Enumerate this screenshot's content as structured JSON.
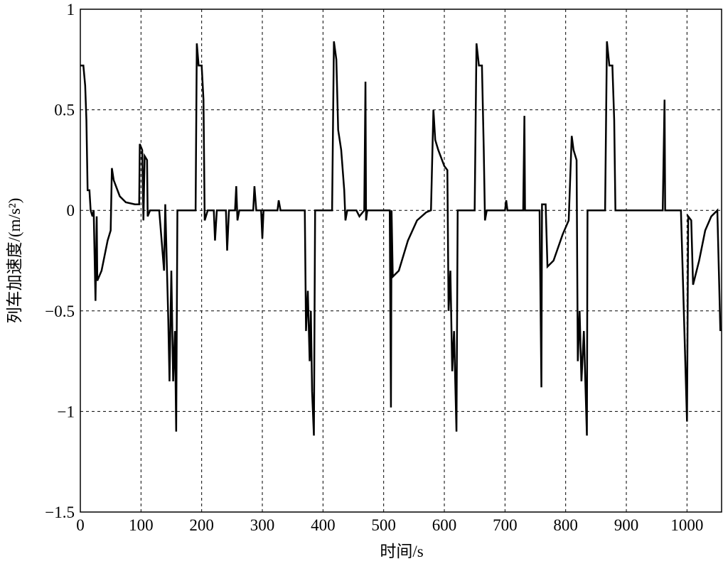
{
  "chart_data": {
    "type": "line",
    "xlabel": "时间/s",
    "ylabel": "列车加速度/(m/s²)",
    "xlim": [
      0,
      1057
    ],
    "ylim": [
      -1.5,
      1
    ],
    "xticks": [
      0,
      100,
      200,
      300,
      400,
      500,
      600,
      700,
      800,
      900,
      1000
    ],
    "yticks": [
      {
        "value": -1.5,
        "label": "−1.5"
      },
      {
        "value": -1,
        "label": "−1"
      },
      {
        "value": -0.5,
        "label": "−0.5"
      },
      0,
      0.5,
      1
    ],
    "grid": true,
    "series": [
      {
        "color": "#000000",
        "x": [
          0,
          5,
          8,
          10,
          12,
          15,
          17,
          20,
          22,
          25,
          27,
          28,
          35,
          45,
          50,
          52,
          55,
          65,
          75,
          90,
          97,
          98,
          102,
          104,
          106,
          110,
          111,
          115,
          130,
          138,
          140,
          145,
          147,
          150,
          153,
          156,
          158,
          160,
          190,
          192,
          195,
          200,
          203,
          205,
          210,
          220,
          222,
          225,
          240,
          242,
          245,
          255,
          257,
          259,
          262,
          285,
          287,
          290,
          298,
          300,
          302,
          325,
          327,
          330,
          370,
          372,
          375,
          378,
          380,
          382,
          385,
          387,
          415,
          418,
          422,
          425,
          430,
          435,
          437,
          440,
          455,
          460,
          468,
          470,
          471,
          473,
          510,
          512,
          513,
          515,
          525,
          540,
          555,
          570,
          578,
          582,
          585,
          590,
          600,
          605,
          607,
          610,
          613,
          616,
          620,
          622,
          650,
          653,
          657,
          662,
          665,
          667,
          670,
          700,
          702,
          704,
          730,
          732,
          733,
          757,
          760,
          761,
          767,
          770,
          780,
          795,
          805,
          810,
          813,
          818,
          820,
          823,
          826,
          830,
          835,
          836,
          865,
          868,
          872,
          877,
          880,
          882,
          960,
          963,
          964,
          990,
          1000,
          1002,
          1007,
          1010,
          1020,
          1030,
          1040,
          1050,
          1055
        ],
        "values": [
          0.72,
          0.72,
          0.62,
          0.45,
          0.1,
          0.1,
          0,
          -0.03,
          0,
          -0.45,
          -0.03,
          -0.35,
          -0.3,
          -0.15,
          -0.1,
          0.21,
          0.15,
          0.07,
          0.04,
          0.03,
          0.03,
          0.33,
          0.3,
          -0.05,
          0.27,
          0.25,
          -0.03,
          0,
          0,
          -0.3,
          0.03,
          -0.55,
          -0.85,
          -0.3,
          -0.85,
          -0.6,
          -1.1,
          0,
          0,
          0.83,
          0.72,
          0.72,
          0.55,
          -0.05,
          0,
          0,
          -0.15,
          0,
          0,
          -0.2,
          0,
          0,
          0.12,
          -0.05,
          0,
          0,
          0.12,
          0,
          0,
          -0.14,
          0,
          0,
          0.05,
          0,
          0,
          -0.6,
          -0.4,
          -0.75,
          -0.5,
          -0.9,
          -1.12,
          0,
          0,
          0.84,
          0.75,
          0.4,
          0.3,
          0.1,
          -0.05,
          0,
          0,
          -0.03,
          0,
          0.64,
          -0.05,
          0,
          0,
          -0.98,
          0,
          -0.33,
          -0.3,
          -0.15,
          -0.05,
          -0.01,
          0,
          0.5,
          0.35,
          0.3,
          0.22,
          0.2,
          -0.5,
          -0.3,
          -0.8,
          -0.6,
          -1.1,
          0,
          0,
          0.83,
          0.72,
          0.72,
          0.3,
          -0.05,
          0,
          0,
          0.05,
          0,
          0,
          0.47,
          0,
          0,
          -0.88,
          0.03,
          0.03,
          -0.28,
          -0.25,
          -0.12,
          -0.05,
          0.37,
          0.3,
          0.25,
          -0.75,
          -0.5,
          -0.85,
          -0.6,
          -1.12,
          0,
          0,
          0.84,
          0.72,
          0.72,
          0.45,
          0,
          0,
          0.55,
          0,
          0,
          -1.05,
          -0.03,
          -0.05,
          -0.37,
          -0.25,
          -0.1,
          -0.03,
          0,
          -0.6
        ]
      }
    ]
  }
}
